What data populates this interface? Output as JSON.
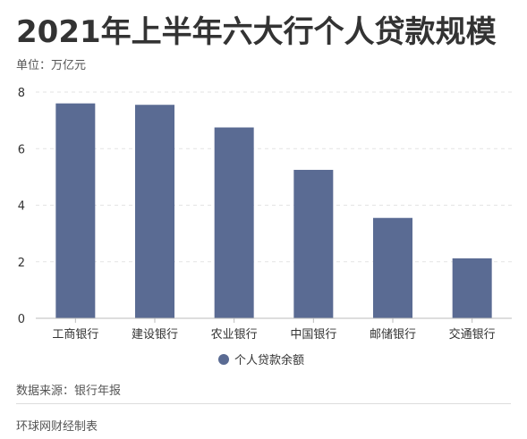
{
  "title": "2021年上半年六大行个人贷款规模",
  "unit": "单位：万亿元",
  "source": "数据来源：银行年报",
  "credit": "环球网财经制表",
  "colors": {
    "bar": "#5a6b93",
    "grid": "#e3e3e3",
    "axis": "#bbbbbb",
    "text": "#333333"
  },
  "chart_data": {
    "type": "bar",
    "categories": [
      "工商银行",
      "建设银行",
      "农业银行",
      "中国银行",
      "邮储银行",
      "交通银行"
    ],
    "series": [
      {
        "name": "个人贷款余额",
        "values": [
          7.6,
          7.55,
          6.75,
          5.25,
          3.55,
          2.12
        ]
      }
    ],
    "ylim": [
      0,
      8
    ],
    "yticks": [
      "0",
      "2",
      "4",
      "6",
      "8"
    ],
    "grid": true,
    "legend": "bottom-center"
  }
}
